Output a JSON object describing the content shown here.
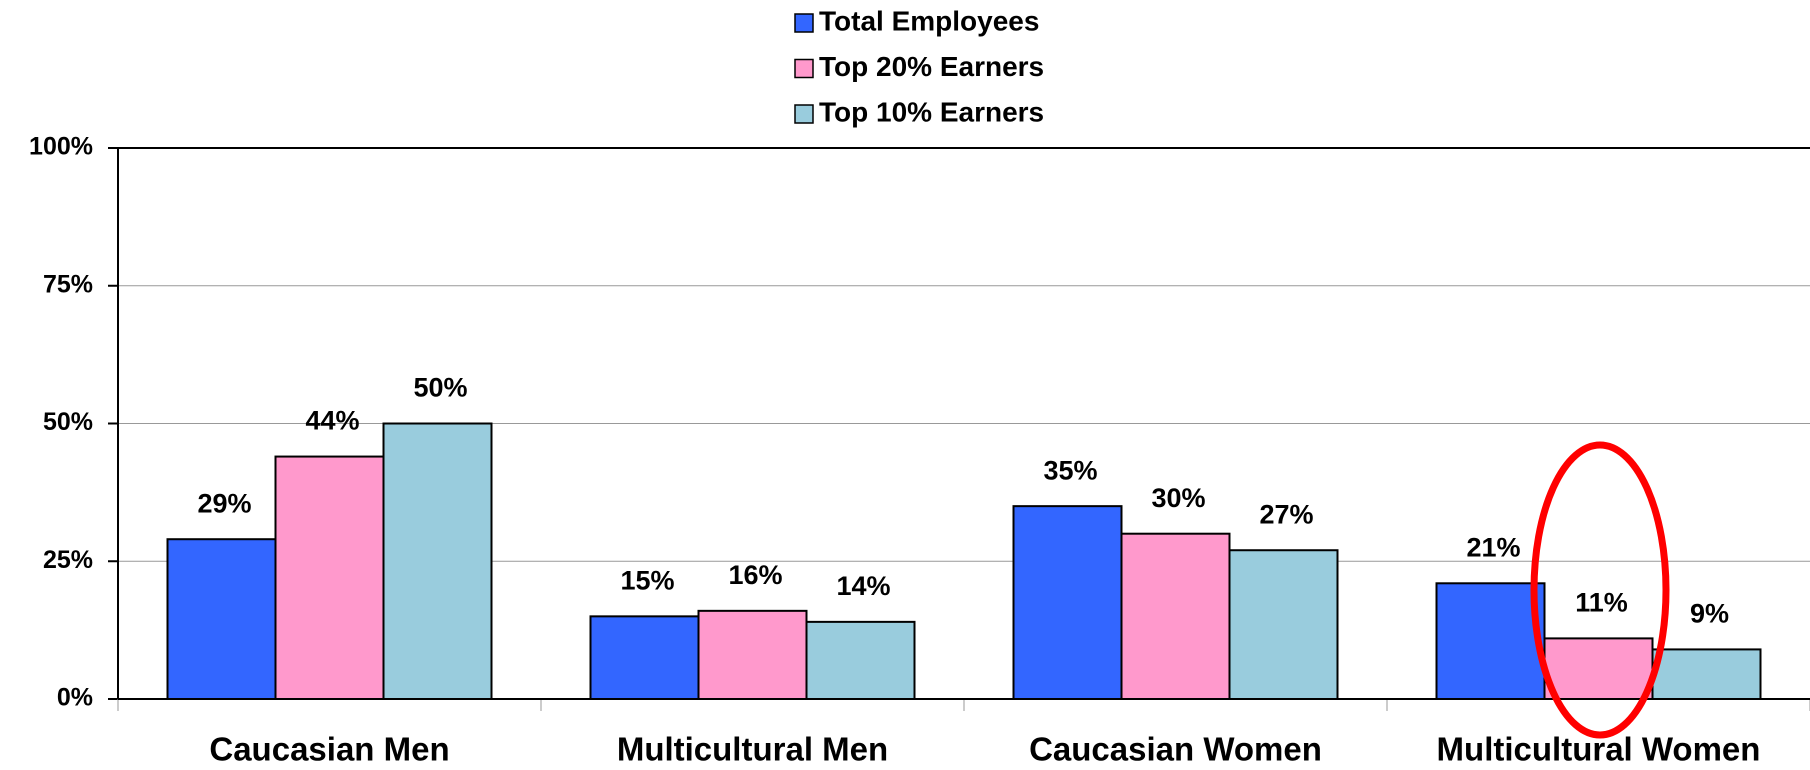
{
  "chart_data": {
    "type": "bar",
    "categories": [
      "Caucasian Men",
      "Multicultural Men",
      "Caucasian Women",
      "Multicultural Women"
    ],
    "series": [
      {
        "name": "Total Employees",
        "color": "#3366ff",
        "values": [
          29,
          15,
          35,
          21
        ],
        "value_labels": [
          "29%",
          "15%",
          "35%",
          "21%"
        ]
      },
      {
        "name": "Top 20% Earners",
        "color": "#ff99cc",
        "values": [
          44,
          16,
          30,
          11
        ],
        "value_labels": [
          "44%",
          "16%",
          "30%",
          "11%"
        ]
      },
      {
        "name": "Top 10% Earners",
        "color": "#99ccdd",
        "values": [
          50,
          14,
          27,
          9
        ],
        "value_labels": [
          "50%",
          "14%",
          "27%",
          "9%"
        ]
      }
    ],
    "ylim": [
      0,
      100
    ],
    "yticks": [
      {
        "value": 0,
        "label": "0%"
      },
      {
        "value": 25,
        "label": "25%"
      },
      {
        "value": 50,
        "label": "50%"
      },
      {
        "value": 75,
        "label": "75%"
      },
      {
        "value": 100,
        "label": "100%"
      }
    ],
    "grid": true,
    "legend": "top"
  }
}
